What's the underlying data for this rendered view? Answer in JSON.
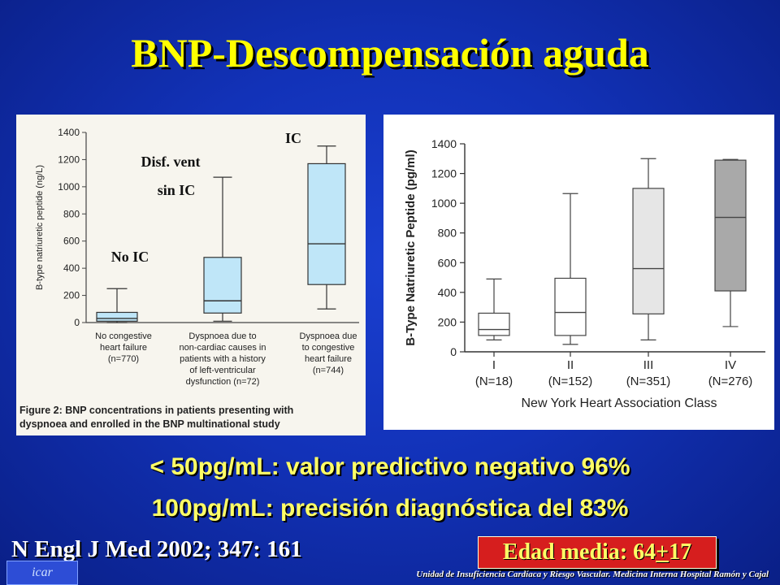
{
  "title": "BNP-Descompensación aguda",
  "chart_data": [
    {
      "type": "box",
      "ylabel": "B-type natriuretic peptide (ng/L)",
      "ylim": [
        0,
        1400
      ],
      "yticks": [
        0,
        200,
        400,
        600,
        800,
        1000,
        1200,
        1400
      ],
      "categories": [
        [
          "No congestive",
          "heart failure",
          "(n=770)"
        ],
        [
          "Dyspnoea due to",
          "non-cardiac causes in",
          "patients with a history",
          "of left-ventricular",
          "dysfunction (n=72)"
        ],
        [
          "Dyspnoea due",
          "to congestive",
          "heart failure",
          "(n=744)"
        ]
      ],
      "annotations": [
        "No IC",
        "Disf. vent",
        "sin IC",
        "IC"
      ],
      "boxes": [
        {
          "min": 0,
          "q1": 10,
          "median": 30,
          "q3": 75,
          "max": 250
        },
        {
          "min": 10,
          "q1": 70,
          "median": 160,
          "q3": 480,
          "max": 1070
        },
        {
          "min": 100,
          "q1": 280,
          "median": 580,
          "q3": 1170,
          "max": 1300
        }
      ],
      "caption_bold": "Figure 2: BNP concentrations in patients presenting with",
      "caption_line2": "dyspnoea and enrolled in the BNP multinational study",
      "box_fill": "#bfe6f8"
    },
    {
      "type": "box",
      "ylabel": "B-Type Natriuretic Peptide (pg/ml)",
      "xlabel": "New York Heart Association Class",
      "ylim": [
        0,
        1400
      ],
      "yticks": [
        0,
        200,
        400,
        600,
        800,
        1000,
        1200,
        1400
      ],
      "categories": [
        "I",
        "II",
        "III",
        "IV"
      ],
      "category_n": [
        "(N=18)",
        "(N=152)",
        "(N=351)",
        "(N=276)"
      ],
      "boxes": [
        {
          "min": 80,
          "q1": 110,
          "median": 150,
          "q3": 260,
          "max": 490,
          "fill": "#ffffff"
        },
        {
          "min": 50,
          "q1": 110,
          "median": 265,
          "q3": 495,
          "max": 1065,
          "fill": "#ffffff"
        },
        {
          "min": 80,
          "q1": 255,
          "median": 560,
          "q3": 1100,
          "max": 1300,
          "fill": "#e6e6e6"
        },
        {
          "min": 170,
          "q1": 410,
          "median": 905,
          "q3": 1290,
          "max": 1295,
          "fill": "#a9a9a9"
        }
      ]
    }
  ],
  "line1": "< 50pg/mL: valor predictivo negativo 96%",
  "line2": "100pg/mL: precisión diagnóstica del 83%",
  "reference": "N Engl J Med 2002; 347: 161",
  "age": {
    "prefix": "Edad media: 64",
    "pm": "+",
    "suffix": " 17"
  },
  "logo_text": "icar",
  "footer": "Unidad de Insuficiencia Cardíaca y Riesgo Vascular. Medicina Interna Hospital Ramón y Cajal",
  "colors": {
    "title": "#ffff00",
    "age_box": "#d61e1e"
  }
}
